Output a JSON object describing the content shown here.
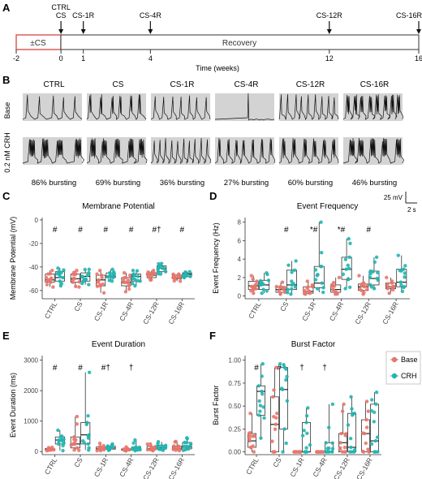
{
  "panels": {
    "A": "A",
    "B": "B",
    "C": "C",
    "D": "D",
    "E": "E",
    "F": "F"
  },
  "timeline": {
    "axis_title": "Time (weeks)",
    "ticks": [
      -2,
      0,
      1,
      4,
      12,
      16
    ],
    "cs_box_label": "±CS",
    "recovery_label": "Recovery",
    "markers": [
      {
        "label_top": "CTRL",
        "label": "CS",
        "week": 0
      },
      {
        "label": "CS-1R",
        "week": 1
      },
      {
        "label": "CS-4R",
        "week": 4
      },
      {
        "label": "CS-12R",
        "week": 12
      },
      {
        "label": "CS-16R",
        "week": 16
      }
    ],
    "colors": {
      "cs_box": "#d9534f"
    }
  },
  "traces": {
    "groups": [
      "CTRL",
      "CS",
      "CS-1R",
      "CS-4R",
      "CS-12R",
      "CS-16R"
    ],
    "row_labels": [
      "Base",
      "0.2 nM CRH"
    ],
    "bursting": [
      "86% bursting",
      "69% bursting",
      "36% bursting",
      "27% bursting",
      "60% bursting",
      "46% bursting"
    ],
    "bursting_pct": [
      86,
      69,
      36,
      27,
      60,
      46
    ],
    "scale_mv": "25 mV",
    "scale_s": "2 s"
  },
  "legend": {
    "entries": [
      {
        "name": "Base",
        "color": "#e8756b"
      },
      {
        "name": "CRH",
        "color": "#20b5b0"
      }
    ]
  },
  "chart_data": [
    {
      "type": "box",
      "panel": "C",
      "title": "Membrane Potential",
      "ylabel": "Membrane Potential (mV)",
      "categories": [
        "CTRL",
        "CS",
        "CS-1R",
        "CS-4R",
        "CS-12R",
        "CS-16R"
      ],
      "yticks": [
        -60,
        -40,
        -20,
        0
      ],
      "ylim": [
        -67,
        2
      ],
      "annotations": [
        "#",
        "#",
        "#",
        "#",
        "#†",
        "#"
      ],
      "series": [
        {
          "name": "Base",
          "boxes": [
            {
              "min": -57,
              "q1": -53,
              "median": -51,
              "q3": -46,
              "max": -43
            },
            {
              "min": -57,
              "q1": -53,
              "median": -50,
              "q3": -46,
              "max": -43
            },
            {
              "min": -62,
              "q1": -56,
              "median": -51,
              "q3": -47,
              "max": -43
            },
            {
              "min": -61,
              "q1": -56,
              "median": -53,
              "q3": -49,
              "max": -45
            },
            {
              "min": -51,
              "q1": -49,
              "median": -47,
              "q3": -45,
              "max": -43
            },
            {
              "min": -52,
              "q1": -50,
              "median": -49,
              "q3": -47,
              "max": -46
            }
          ]
        },
        {
          "name": "CRH",
          "boxes": [
            {
              "min": -56,
              "q1": -52,
              "median": -49,
              "q3": -44,
              "max": -41
            },
            {
              "min": -55,
              "q1": -52,
              "median": -48,
              "q3": -45,
              "max": -42
            },
            {
              "min": -52,
              "q1": -49,
              "median": -48,
              "q3": -45,
              "max": -42
            },
            {
              "min": -56,
              "q1": -52,
              "median": -48,
              "q3": -46,
              "max": -43
            },
            {
              "min": -46,
              "q1": -44,
              "median": -41,
              "q3": -39,
              "max": -37
            },
            {
              "min": -49,
              "q1": -48,
              "median": -46,
              "q3": -45,
              "max": -44
            }
          ]
        }
      ]
    },
    {
      "type": "box",
      "panel": "D",
      "title": "Event Frequency",
      "ylabel": "Event Frequency (Hz)",
      "categories": [
        "CTRL",
        "CS",
        "CS-1R",
        "CS-4R",
        "CS-12R",
        "CS-16R"
      ],
      "yticks": [
        0,
        2,
        4,
        6,
        8
      ],
      "ylim": [
        -0.3,
        8.5
      ],
      "annotations": [
        "",
        "#",
        "*#",
        "*#",
        "#",
        ""
      ],
      "series": [
        {
          "name": "Base",
          "boxes": [
            {
              "min": 0.3,
              "q1": 0.7,
              "median": 1.1,
              "q3": 1.6,
              "max": 2.2
            },
            {
              "min": 0.2,
              "q1": 0.4,
              "median": 0.7,
              "q3": 1.0,
              "max": 1.5
            },
            {
              "min": 0.2,
              "q1": 0.3,
              "median": 0.5,
              "q3": 1.0,
              "max": 1.6
            },
            {
              "min": 0.2,
              "q1": 0.4,
              "median": 0.7,
              "q3": 1.2,
              "max": 2.0
            },
            {
              "min": 0.2,
              "q1": 0.6,
              "median": 1.0,
              "q3": 1.3,
              "max": 2.2
            },
            {
              "min": 0.3,
              "q1": 0.8,
              "median": 1.0,
              "q3": 1.4,
              "max": 2.0
            }
          ]
        },
        {
          "name": "CRH",
          "boxes": [
            {
              "min": 0.3,
              "q1": 0.7,
              "median": 1.2,
              "q3": 1.7,
              "max": 2.5
            },
            {
              "min": 0.2,
              "q1": 0.7,
              "median": 1.2,
              "q3": 2.8,
              "max": 3.8
            },
            {
              "min": 0.4,
              "q1": 0.9,
              "median": 1.4,
              "q3": 3.2,
              "max": 8.0
            },
            {
              "min": 0.8,
              "q1": 1.8,
              "median": 2.9,
              "q3": 4.2,
              "max": 6.2
            },
            {
              "min": 0.8,
              "q1": 1.2,
              "median": 1.9,
              "q3": 2.7,
              "max": 4.2
            },
            {
              "min": 0.5,
              "q1": 1.0,
              "median": 1.5,
              "q3": 2.9,
              "max": 4.4
            }
          ]
        }
      ]
    },
    {
      "type": "box",
      "panel": "E",
      "title": "Event Duration",
      "ylabel": "Event Duration (ms)",
      "categories": [
        "CTRL",
        "CS",
        "CS-1R",
        "CS-4R",
        "CS-12R",
        "CS-16R"
      ],
      "yticks": [
        0,
        1000,
        2000,
        3000
      ],
      "ylim": [
        -100,
        3150
      ],
      "annotations": [
        "#",
        "#",
        "#†",
        "†",
        "",
        ""
      ],
      "series": [
        {
          "name": "Base",
          "boxes": [
            {
              "min": 30,
              "q1": 50,
              "median": 70,
              "q3": 100,
              "max": 140
            },
            {
              "min": 40,
              "q1": 120,
              "median": 250,
              "q3": 480,
              "max": 1150
            },
            {
              "min": 30,
              "q1": 60,
              "median": 90,
              "q3": 150,
              "max": 270
            },
            {
              "min": 20,
              "q1": 40,
              "median": 60,
              "q3": 90,
              "max": 150
            },
            {
              "min": 30,
              "q1": 60,
              "median": 100,
              "q3": 170,
              "max": 250
            },
            {
              "min": 30,
              "q1": 70,
              "median": 110,
              "q3": 180,
              "max": 330
            }
          ]
        },
        {
          "name": "CRH",
          "boxes": [
            {
              "min": 30,
              "q1": 250,
              "median": 380,
              "q3": 480,
              "max": 700
            },
            {
              "min": 50,
              "q1": 250,
              "median": 550,
              "q3": 950,
              "max": 2600
            },
            {
              "min": 40,
              "q1": 80,
              "median": 120,
              "q3": 180,
              "max": 250
            },
            {
              "min": 30,
              "q1": 60,
              "median": 100,
              "q3": 150,
              "max": 380
            },
            {
              "min": 40,
              "q1": 80,
              "median": 130,
              "q3": 200,
              "max": 320
            },
            {
              "min": 40,
              "q1": 90,
              "median": 150,
              "q3": 300,
              "max": 450
            }
          ]
        }
      ]
    },
    {
      "type": "box",
      "panel": "F",
      "title": "Burst Factor",
      "ylabel": "Burst Factor",
      "categories": [
        "CTRL",
        "CS",
        "CS-1R",
        "CS-4R",
        "CS-12R",
        "CS-16R"
      ],
      "yticks": [
        0.0,
        0.25,
        0.5,
        0.75,
        1.0
      ],
      "ytick_labels": [
        "0.00",
        "0.25",
        "0.50",
        "0.75",
        "1.00"
      ],
      "ylim": [
        -0.03,
        1.05
      ],
      "annotations": [
        "#",
        "#",
        "†",
        "†",
        "",
        ""
      ],
      "series": [
        {
          "name": "Base",
          "boxes": [
            {
              "min": 0.0,
              "q1": 0.05,
              "median": 0.12,
              "q3": 0.2,
              "max": 0.42
            },
            {
              "min": 0.0,
              "q1": 0.0,
              "median": 0.3,
              "q3": 0.6,
              "max": 0.92
            },
            {
              "min": 0.0,
              "q1": 0.0,
              "median": 0.0,
              "q3": 0.0,
              "max": 0.0
            },
            {
              "min": 0.0,
              "q1": 0.0,
              "median": 0.0,
              "q3": 0.0,
              "max": 0.0
            },
            {
              "min": 0.0,
              "q1": 0.0,
              "median": 0.1,
              "q3": 0.2,
              "max": 0.52
            },
            {
              "min": 0.0,
              "q1": 0.0,
              "median": 0.2,
              "q3": 0.35,
              "max": 0.55
            }
          ]
        },
        {
          "name": "CRH",
          "boxes": [
            {
              "min": 0.15,
              "q1": 0.4,
              "median": 0.66,
              "q3": 0.72,
              "max": 0.96
            },
            {
              "min": 0.0,
              "q1": 0.25,
              "median": 0.68,
              "q3": 0.92,
              "max": 0.96
            },
            {
              "min": 0.0,
              "q1": 0.0,
              "median": 0.0,
              "q3": 0.32,
              "max": 0.48
            },
            {
              "min": 0.0,
              "q1": 0.0,
              "median": 0.0,
              "q3": 0.1,
              "max": 0.52
            },
            {
              "min": 0.0,
              "q1": 0.0,
              "median": 0.05,
              "q3": 0.42,
              "max": 0.6
            },
            {
              "min": 0.0,
              "q1": 0.0,
              "median": 0.12,
              "q3": 0.52,
              "max": 0.65
            }
          ]
        }
      ]
    }
  ]
}
